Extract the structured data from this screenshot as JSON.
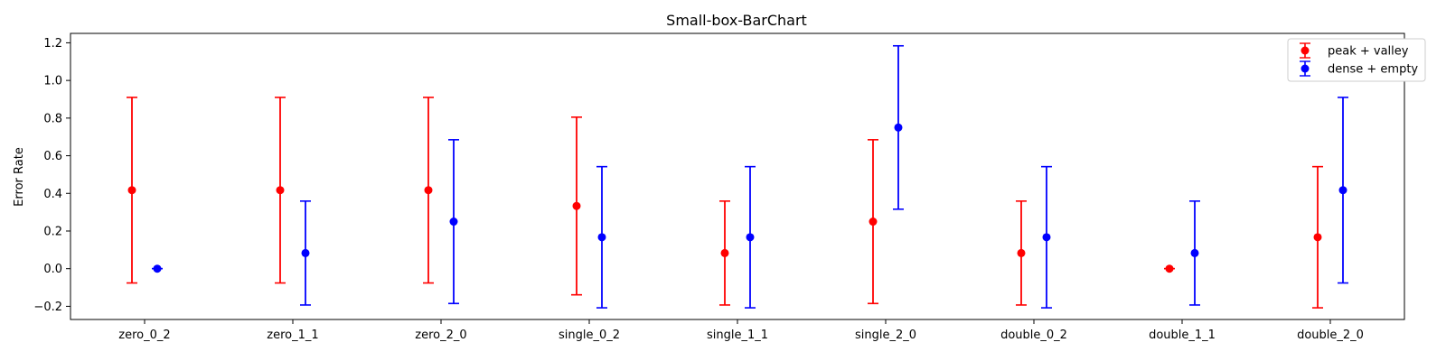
{
  "chart_data": {
    "type": "errorbar",
    "title": "Small-box-BarChart",
    "xlabel": "",
    "ylabel": "Error Rate",
    "categories": [
      "zero_0_2",
      "zero_1_1",
      "zero_2_0",
      "single_0_2",
      "single_1_1",
      "single_2_0",
      "double_0_2",
      "double_1_1",
      "double_2_0"
    ],
    "ylim": [
      -0.27,
      1.25
    ],
    "yticks": [
      -0.2,
      0.0,
      0.2,
      0.4,
      0.6,
      0.8,
      1.0,
      1.2
    ],
    "ytick_labels": [
      "−0.2",
      "0.0",
      "0.2",
      "0.4",
      "0.6",
      "0.8",
      "1.0",
      "1.2"
    ],
    "grid": false,
    "legend_position": "top-right",
    "series": [
      {
        "name": "peak + valley",
        "color": "#ff0000",
        "values": [
          0.417,
          0.417,
          0.417,
          0.333,
          0.083,
          0.25,
          0.083,
          0.0,
          0.167
        ],
        "lower": [
          -0.076,
          -0.076,
          -0.076,
          -0.139,
          -0.193,
          -0.185,
          -0.193,
          0.0,
          -0.208
        ],
        "upper": [
          0.91,
          0.91,
          0.91,
          0.805,
          0.359,
          0.685,
          0.359,
          0.0,
          0.542
        ]
      },
      {
        "name": "dense + empty",
        "color": "#0000ff",
        "values": [
          0.0,
          0.083,
          0.25,
          0.167,
          0.167,
          0.75,
          0.167,
          0.083,
          0.417
        ],
        "lower": [
          0.0,
          -0.193,
          -0.185,
          -0.208,
          -0.208,
          0.316,
          -0.208,
          -0.193,
          -0.076
        ],
        "upper": [
          0.0,
          0.359,
          0.685,
          0.542,
          0.542,
          1.184,
          0.542,
          0.359,
          0.91
        ]
      }
    ]
  }
}
